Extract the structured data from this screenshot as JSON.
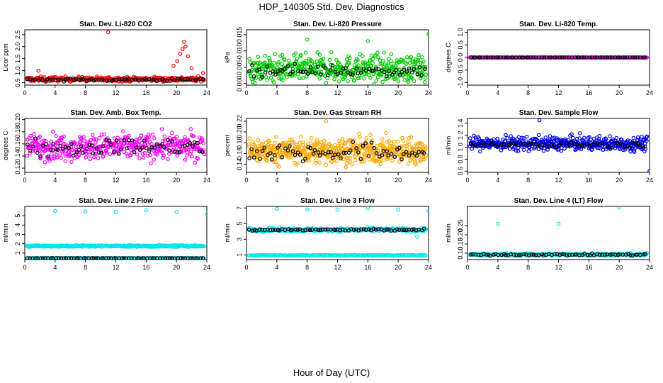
{
  "title": "HDP_140305 Std. Dev. Diagnostics",
  "xlabel": "Hour of Day (UTC)",
  "chart_data": [
    {
      "type": "scatter",
      "title": "Stan. Dev. Li-820 CO2",
      "ylabel": "Licor ppm",
      "xlim": [
        0,
        24
      ],
      "xticks": [
        0,
        4,
        8,
        12,
        16,
        20,
        24
      ],
      "ylim": [
        0.4,
        2.7
      ],
      "yticks": [
        0.5,
        1.0,
        1.5,
        2.0,
        2.5
      ],
      "yticklabels": [
        "0.5",
        "1.0",
        "1.5",
        "2.0",
        "2.5"
      ],
      "series": [
        {
          "color": "#ff0000",
          "base": 0.65,
          "spread": 0.08,
          "n": 300,
          "outliers": [
            [
              1.8,
              1.0
            ],
            [
              11.0,
              2.6
            ],
            [
              19.6,
              1.2
            ],
            [
              20.1,
              1.4
            ],
            [
              20.5,
              1.7
            ],
            [
              20.8,
              1.9
            ],
            [
              21.0,
              2.2
            ],
            [
              21.2,
              2.0
            ],
            [
              21.5,
              1.6
            ],
            [
              22.0,
              1.1
            ],
            [
              23.5,
              0.9
            ]
          ]
        },
        {
          "color": "#000000",
          "base": 0.62,
          "spread": 0.05,
          "n": 70,
          "outliers": []
        }
      ]
    },
    {
      "type": "scatter",
      "title": "Stan. Dev. Li-820 Pressure",
      "ylabel": "kPa",
      "xlim": [
        0,
        24
      ],
      "xticks": [
        0,
        4,
        8,
        12,
        16,
        20,
        24
      ],
      "ylim": [
        -0.0005,
        0.0165
      ],
      "yticks": [
        0.0,
        0.005,
        0.01,
        0.015
      ],
      "yticklabels": [
        "0.000",
        "0.005",
        "0.010",
        "0.015"
      ],
      "series": [
        {
          "color": "#00cc00",
          "base": 0.0045,
          "spread": 0.0035,
          "n": 450,
          "outliers": [
            [
              8.0,
              0.0135
            ],
            [
              16.0,
              0.013
            ],
            [
              24.0,
              0.0152
            ]
          ]
        },
        {
          "color": "#000000",
          "base": 0.004,
          "spread": 0.0015,
          "n": 70,
          "outliers": []
        }
      ]
    },
    {
      "type": "scatter",
      "title": "Stan. Dev. Li-820 Temp.",
      "ylabel": "degrees C",
      "xlim": [
        0,
        24
      ],
      "xticks": [
        0,
        4,
        8,
        12,
        16,
        20,
        24
      ],
      "ylim": [
        -1.1,
        1.1
      ],
      "yticks": [
        -1.0,
        -0.5,
        0.0,
        0.5,
        1.0
      ],
      "yticklabels": [
        "-1.0",
        "-0.5",
        "0.0",
        "0.5",
        "1.0"
      ],
      "series": [
        {
          "color": "#ff00ff",
          "base": 0.0,
          "spread": 0.0,
          "n": 300,
          "outliers": []
        },
        {
          "color": "#000000",
          "base": 0.0,
          "spread": 0.0,
          "n": 70,
          "outliers": []
        }
      ]
    },
    {
      "type": "scatter",
      "title": "Stan. Dev. Amb. Box Temp.",
      "ylabel": "degrees C",
      "xlim": [
        0,
        24
      ],
      "xticks": [
        0,
        4,
        8,
        12,
        16,
        20,
        24
      ],
      "ylim": [
        0.113,
        0.202
      ],
      "yticks": [
        0.12,
        0.14,
        0.16,
        0.18,
        0.2
      ],
      "yticklabels": [
        "0.12",
        "0.14",
        "0.16",
        "0.18",
        "0.20"
      ],
      "series": [
        {
          "color": "#ff00ff",
          "base": 0.155,
          "spread": 0.018,
          "n": 420,
          "outliers": []
        },
        {
          "color": "#000000",
          "base": 0.155,
          "spread": 0.012,
          "n": 70,
          "outliers": []
        }
      ]
    },
    {
      "type": "scatter",
      "title": "Stan. Dev. Gas Stream RH",
      "ylabel": "percent",
      "xlim": [
        0,
        24
      ],
      "xticks": [
        0,
        4,
        8,
        12,
        16,
        20,
        24
      ],
      "ylim": [
        0.125,
        0.225
      ],
      "yticks": [
        0.14,
        0.16,
        0.18,
        0.2,
        0.22
      ],
      "yticklabels": [
        "0.14",
        "0.16",
        "0.18",
        "0.20",
        "0.22"
      ],
      "series": [
        {
          "color": "#ffaa00",
          "base": 0.165,
          "spread": 0.02,
          "n": 520,
          "outliers": [
            [
              10.5,
              0.22
            ]
          ]
        },
        {
          "color": "#000000",
          "base": 0.162,
          "spread": 0.015,
          "n": 70,
          "outliers": []
        }
      ]
    },
    {
      "type": "scatter",
      "title": "Stan. Dev. Sample Flow",
      "ylabel": "ml/min",
      "xlim": [
        0,
        24
      ],
      "xticks": [
        0,
        4,
        8,
        12,
        16,
        20,
        24
      ],
      "ylim": [
        0.58,
        1.48
      ],
      "yticks": [
        0.6,
        0.8,
        1.0,
        1.2,
        1.4
      ],
      "yticklabels": [
        "0.6",
        "0.8",
        "1.0",
        "1.2",
        "1.4"
      ],
      "series": [
        {
          "color": "#0000ff",
          "base": 1.06,
          "spread": 0.1,
          "n": 450,
          "outliers": [
            [
              24.0,
              0.6
            ],
            [
              9.5,
              1.45
            ]
          ]
        },
        {
          "color": "#000000",
          "base": 1.04,
          "spread": 0.04,
          "n": 70,
          "outliers": []
        }
      ]
    },
    {
      "type": "scatter",
      "title": "Stan. Dev. Line 2 Flow",
      "ylabel": "ml/min",
      "xlim": [
        0,
        24
      ],
      "xticks": [
        0,
        4,
        8,
        12,
        16,
        20,
        24
      ],
      "ylim": [
        0.3,
        6.0
      ],
      "yticks": [
        1,
        2,
        3,
        4,
        5
      ],
      "yticklabels": [
        "1",
        "2",
        "3",
        "4",
        "5"
      ],
      "series": [
        {
          "color": "#00e5ee",
          "base": 1.75,
          "spread": 0.08,
          "n": 300,
          "outliers": [
            [
              4.0,
              5.5
            ],
            [
              8.0,
              5.45
            ],
            [
              12.0,
              5.4
            ],
            [
              16.0,
              5.6
            ],
            [
              20.0,
              5.4
            ],
            [
              24.0,
              5.2
            ]
          ]
        },
        {
          "color": "#00e5ee",
          "base": 0.45,
          "spread": 0.02,
          "n": 150,
          "outliers": []
        },
        {
          "color": "#000000",
          "base": 0.45,
          "spread": 0.01,
          "n": 70,
          "outliers": []
        }
      ]
    },
    {
      "type": "scatter",
      "title": "Stan. Dev. Line 3 Flow",
      "ylabel": "ml/min",
      "xlim": [
        0,
        24
      ],
      "xticks": [
        0,
        4,
        8,
        12,
        16,
        20,
        24
      ],
      "ylim": [
        0.4,
        7.2
      ],
      "yticks": [
        1,
        3,
        5,
        7
      ],
      "yticklabels": [
        "1",
        "3",
        "5",
        "7"
      ],
      "series": [
        {
          "color": "#00e5ee",
          "base": 4.2,
          "spread": 0.2,
          "n": 300,
          "outliers": [
            [
              4.0,
              6.9
            ],
            [
              8.0,
              6.8
            ],
            [
              12.0,
              6.8
            ],
            [
              16.0,
              7.0
            ],
            [
              20.0,
              6.8
            ],
            [
              24.0,
              6.6
            ],
            [
              22.5,
              3.3
            ]
          ]
        },
        {
          "color": "#00e5ee",
          "base": 0.95,
          "spread": 0.03,
          "n": 150,
          "outliers": []
        },
        {
          "color": "#000000",
          "base": 4.2,
          "spread": 0.12,
          "n": 70,
          "outliers": []
        }
      ]
    },
    {
      "type": "scatter",
      "title": "Stan. Dev. Line 4 (LT) Flow",
      "ylabel": "ml/min",
      "xlim": [
        0,
        24
      ],
      "xticks": [
        0,
        4,
        8,
        12,
        16,
        20,
        24
      ],
      "ylim": [
        0.065,
        0.355
      ],
      "yticks": [
        0.1,
        0.15,
        0.2,
        0.25
      ],
      "yticklabels": [
        "0.10",
        "0.15",
        "0.20",
        "0.25"
      ],
      "series": [
        {
          "color": "#00e5ee",
          "base": 0.093,
          "spread": 0.005,
          "n": 300,
          "outliers": [
            [
              4.0,
              0.26
            ],
            [
              12.0,
              0.26
            ],
            [
              20.0,
              0.35
            ]
          ]
        },
        {
          "color": "#000000",
          "base": 0.092,
          "spread": 0.004,
          "n": 70,
          "outliers": []
        }
      ]
    }
  ]
}
